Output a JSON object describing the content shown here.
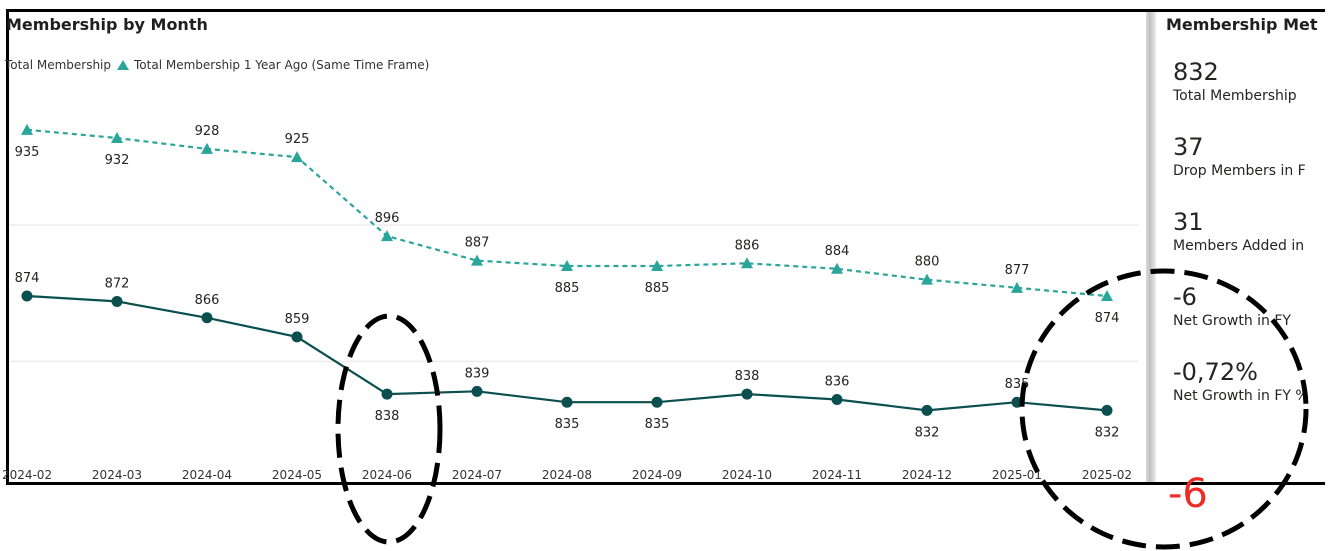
{
  "chart_data": {
    "type": "line",
    "title": "Membership by Month",
    "categories": [
      "2024-02",
      "2024-03",
      "2024-04",
      "2024-05",
      "2024-06",
      "2024-07",
      "2024-08",
      "2024-09",
      "2024-10",
      "2024-11",
      "2024-12",
      "2025-01",
      "2025-02"
    ],
    "series": [
      {
        "name": "Total Membership",
        "values": [
          874,
          872,
          866,
          859,
          838,
          839,
          835,
          835,
          838,
          836,
          832,
          835,
          832
        ],
        "color": "#0c4f4f",
        "style": "solid",
        "marker": "circle"
      },
      {
        "name": "Total Membership 1 Year Ago (Same Time Frame)",
        "values": [
          935,
          932,
          928,
          925,
          896,
          887,
          885,
          885,
          886,
          884,
          880,
          877,
          874
        ],
        "color": "#2aa59a",
        "style": "dashed",
        "marker": "triangle"
      }
    ],
    "ylim": [
      800,
      950
    ],
    "grid": true,
    "legend_position": "top-left",
    "data_labels": true
  },
  "kpi_panel": {
    "title": "Membership Met",
    "items": [
      {
        "value": "832",
        "label": "Total Membership"
      },
      {
        "value": "37",
        "label": "Drop Members in F"
      },
      {
        "value": "31",
        "label": "Members Added in"
      },
      {
        "value": "-6",
        "label": "Net Growth in FY"
      },
      {
        "value": "-0,72%",
        "label": "Net Growth in FY %"
      }
    ]
  },
  "annotation": {
    "value": "-6",
    "color": "#ee2a24"
  }
}
